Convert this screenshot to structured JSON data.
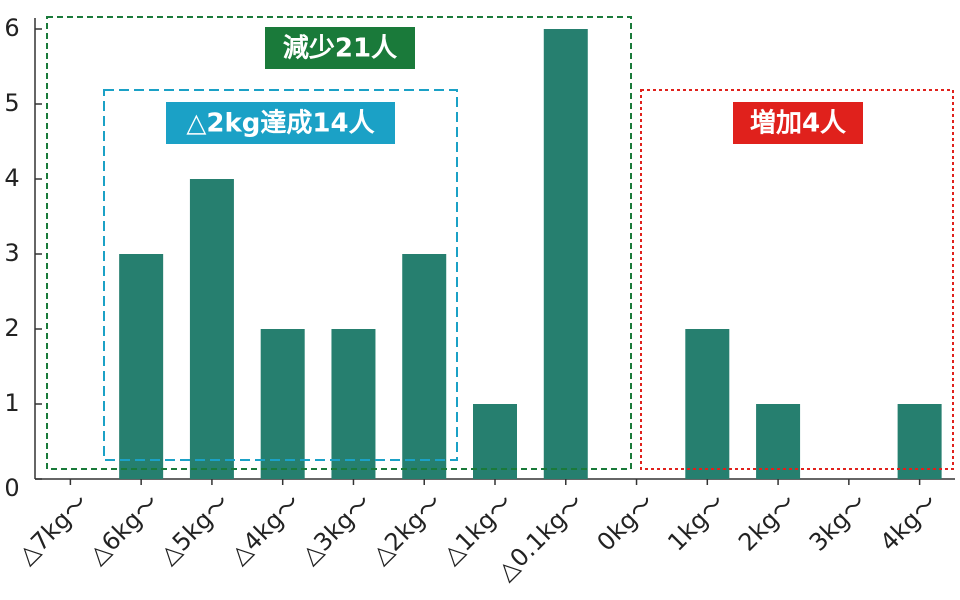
{
  "chart_data": {
    "type": "bar",
    "categories": [
      "△7kg～",
      "△6kg～",
      "△5kg～",
      "△4kg～",
      "△3kg～",
      "△2kg～",
      "△1kg～",
      "△0.1kg～",
      "0kg～",
      "1kg～",
      "2kg～",
      "3kg～",
      "4kg～"
    ],
    "values": [
      0,
      3,
      4,
      2,
      2,
      3,
      1,
      6,
      0,
      2,
      1,
      0,
      1
    ],
    "color": "#267f6f",
    "ylim": [
      0,
      6
    ],
    "yticks": [
      0,
      1,
      2,
      3,
      4,
      5,
      6
    ],
    "annotations": [
      {
        "text": "減少21人",
        "color": "#1a7a3a"
      },
      {
        "text": "△2kg達成14人",
        "color": "#1ba1c6"
      },
      {
        "text": "増加4人",
        "color": "#e0211c"
      }
    ]
  }
}
